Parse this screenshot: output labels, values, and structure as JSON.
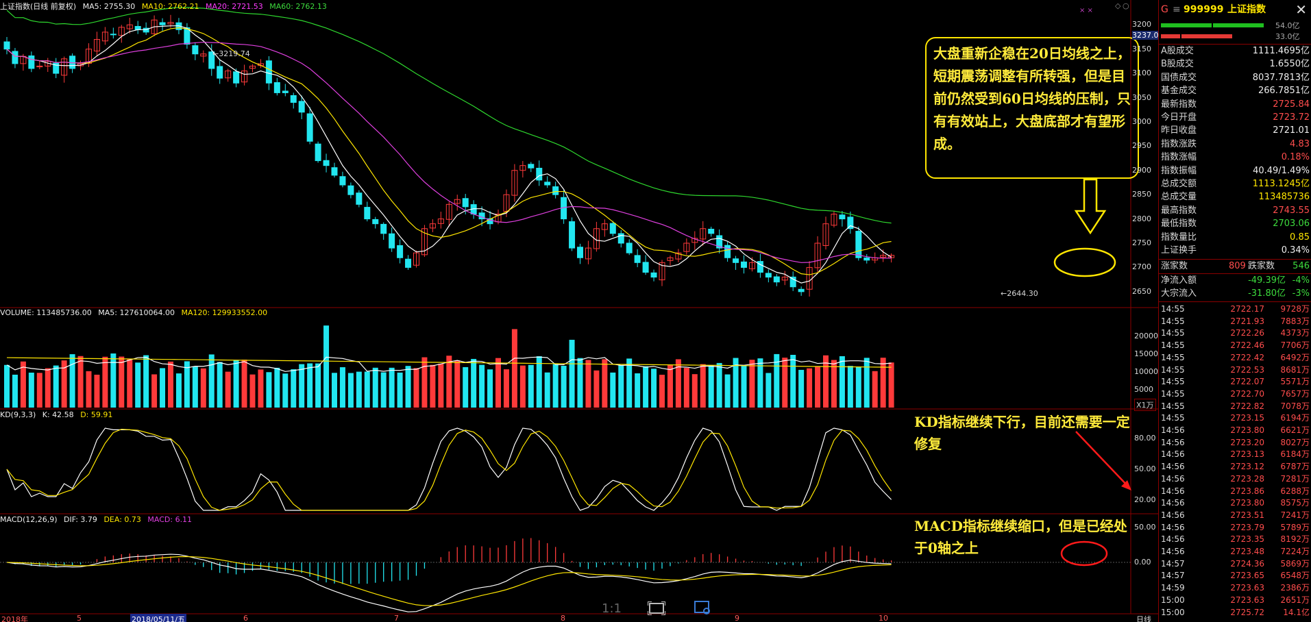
{
  "headers": {
    "main": {
      "title": "上证指数(日线 前复权)",
      "ma5": "MA5: 2755.30",
      "ma10": "MA10: 2762.21",
      "ma20": "MA20: 2721.53",
      "ma60": "MA60: 2762.13"
    },
    "volume": {
      "label": "VOLUME: 113485736.00",
      "ma5": "MA5: 127610064.00",
      "ma120": "MA120: 129933552.00"
    },
    "kd": {
      "label": "KD(9,3,3)",
      "k": "K: 42.58",
      "d": "D: 59.91"
    },
    "macd": {
      "label": "MACD(12,26,9)",
      "dif": "DIF: 3.79",
      "dea": "DEA: 0.73",
      "macd": "MACD: 6.11"
    }
  },
  "price_axis": [
    "3200",
    "3150",
    "3100",
    "3050",
    "3000",
    "2950",
    "2900",
    "2850",
    "2800",
    "2750",
    "2700",
    "2650"
  ],
  "price_axis_current": "3237.0",
  "volume_axis": [
    "20000",
    "15000",
    "10000",
    "5000"
  ],
  "volume_unit": "X1万",
  "kd_axis": [
    "80.00",
    "50.00",
    "20.00"
  ],
  "macd_axis": [
    "50.00",
    "0.00"
  ],
  "date_axis": [
    {
      "label": "2018年",
      "x": 2
    },
    {
      "label": "5",
      "x": 112
    },
    {
      "label": "2018/05/11/五",
      "x": 190,
      "highlight": true
    },
    {
      "label": "6",
      "x": 355
    },
    {
      "label": "7",
      "x": 575
    },
    {
      "label": "8",
      "x": 818
    },
    {
      "label": "9",
      "x": 1072
    },
    {
      "label": "10",
      "x": 1282
    }
  ],
  "date_axis_right": "日线",
  "price_marks": {
    "high": "3219.74",
    "low": "2644.30"
  },
  "annotations": {
    "main": "大盘重新企稳在20日均线之上，短期震荡调整有所转强，但是目前仍然受到60日均线的压制，只有有效站上，大盘底部才有望形成。",
    "kd": "KD指标继续下行，目前还需要一定修复",
    "macd": "MACD指标继续缩口，但是已经处于0轴之上"
  },
  "toolbar": {
    "zoom_label": "1:1"
  },
  "panel": {
    "code": "999999",
    "name": "上证指数",
    "marker": "G",
    "ratio_top": "54.0亿",
    "ratio_bottom": "33.0亿",
    "rows": [
      {
        "label": "A股成交",
        "value": "1111.4695亿",
        "color": "white"
      },
      {
        "label": "B股成交",
        "value": "1.6550亿",
        "color": "white"
      },
      {
        "label": "国债成交",
        "value": "8037.7813亿",
        "color": "white"
      },
      {
        "label": "基金成交",
        "value": "266.7851亿",
        "color": "white"
      },
      {
        "label": "最新指数",
        "value": "2725.84",
        "color": "red"
      },
      {
        "label": "今日开盘",
        "value": "2723.72",
        "color": "red"
      },
      {
        "label": "昨日收盘",
        "value": "2721.01",
        "color": "white"
      },
      {
        "label": "指数涨跌",
        "value": "4.83",
        "color": "red"
      },
      {
        "label": "指数涨幅",
        "value": "0.18%",
        "color": "red"
      },
      {
        "label": "指数振幅",
        "value": "40.49/1.49%",
        "color": "white"
      },
      {
        "label": "总成交额",
        "value": "1113.1245亿",
        "color": "yellow"
      },
      {
        "label": "总成交量",
        "value": "113485736",
        "color": "yellow"
      },
      {
        "label": "最高指数",
        "value": "2743.55",
        "color": "red"
      },
      {
        "label": "最低指数",
        "value": "2703.06",
        "color": "green"
      },
      {
        "label": "指数量比",
        "value": "0.85",
        "color": "yellow"
      },
      {
        "label": "上证换手",
        "value": "0.34%",
        "color": "white"
      }
    ],
    "updown": {
      "up_label": "涨家数",
      "up_value": "809",
      "down_label": "跌家数",
      "down_value": "546"
    },
    "flows": [
      {
        "label": "净流入额",
        "value": "-49.39亿",
        "pct": "-4%"
      },
      {
        "label": "大宗流入",
        "value": "-31.80亿",
        "pct": "-3%"
      }
    ],
    "ticks": [
      {
        "time": "14:55",
        "price": "2722.17",
        "vol": "9728万"
      },
      {
        "time": "14:55",
        "price": "2721.93",
        "vol": "7883万"
      },
      {
        "time": "14:55",
        "price": "2722.26",
        "vol": "4373万"
      },
      {
        "time": "14:55",
        "price": "2722.46",
        "vol": "7706万"
      },
      {
        "time": "14:55",
        "price": "2722.42",
        "vol": "6492万"
      },
      {
        "time": "14:55",
        "price": "2722.53",
        "vol": "8681万"
      },
      {
        "time": "14:55",
        "price": "2722.07",
        "vol": "5571万"
      },
      {
        "time": "14:55",
        "price": "2722.70",
        "vol": "7657万"
      },
      {
        "time": "14:55",
        "price": "2722.82",
        "vol": "7078万"
      },
      {
        "time": "14:55",
        "price": "2723.15",
        "vol": "6194万"
      },
      {
        "time": "14:56",
        "price": "2723.80",
        "vol": "6621万"
      },
      {
        "time": "14:56",
        "price": "2723.20",
        "vol": "8027万"
      },
      {
        "time": "14:56",
        "price": "2723.13",
        "vol": "6184万"
      },
      {
        "time": "14:56",
        "price": "2723.12",
        "vol": "6787万"
      },
      {
        "time": "14:56",
        "price": "2723.28",
        "vol": "7281万"
      },
      {
        "time": "14:56",
        "price": "2723.86",
        "vol": "6288万"
      },
      {
        "time": "14:56",
        "price": "2723.80",
        "vol": "8575万"
      },
      {
        "time": "14:56",
        "price": "2723.51",
        "vol": "7241万"
      },
      {
        "time": "14:56",
        "price": "2723.79",
        "vol": "5789万"
      },
      {
        "time": "14:56",
        "price": "2723.35",
        "vol": "8192万"
      },
      {
        "time": "14:56",
        "price": "2723.48",
        "vol": "7224万"
      },
      {
        "time": "14:57",
        "price": "2724.36",
        "vol": "5869万"
      },
      {
        "time": "14:57",
        "price": "2723.65",
        "vol": "6548万"
      },
      {
        "time": "14:59",
        "price": "2723.63",
        "vol": "2386万"
      },
      {
        "time": "15:00",
        "price": "2723.63",
        "vol": "2651万"
      },
      {
        "time": "15:00",
        "price": "2725.72",
        "vol": "14.1亿"
      }
    ]
  },
  "chart_data": {
    "type": "candlestick",
    "candles_count": 109,
    "price_range": [
      2630,
      3230
    ],
    "close_path": [
      3150,
      3120,
      3135,
      3110,
      3115,
      3125,
      3100,
      3130,
      3110,
      3120,
      3150,
      3170,
      3185,
      3180,
      3195,
      3200,
      3190,
      3185,
      3210,
      3200,
      3205,
      3190,
      3160,
      3140,
      3140,
      3110,
      3090,
      3105,
      3080,
      3105,
      3115,
      3120,
      3080,
      3060,
      3060,
      3040,
      3020,
      2960,
      2920,
      2910,
      2890,
      2870,
      2850,
      2830,
      2800,
      2790,
      2770,
      2740,
      2720,
      2700,
      2730,
      2780,
      2790,
      2800,
      2830,
      2840,
      2825,
      2810,
      2800,
      2790,
      2810,
      2850,
      2900,
      2910,
      2905,
      2880,
      2870,
      2850,
      2800,
      2740,
      2720,
      2740,
      2780,
      2790,
      2770,
      2750,
      2730,
      2710,
      2690,
      2680,
      2710,
      2720,
      2730,
      2750,
      2760,
      2780,
      2770,
      2740,
      2720,
      2710,
      2700,
      2710,
      2690,
      2680,
      2670,
      2680,
      2660,
      2650,
      2700,
      2750,
      2790,
      2810,
      2800,
      2780,
      2720,
      2715,
      2720,
      2725,
      2725
    ],
    "volume_range": [
      0,
      24000
    ],
    "kd_range": [
      10,
      100
    ],
    "macd_range": [
      -70,
      60
    ]
  }
}
